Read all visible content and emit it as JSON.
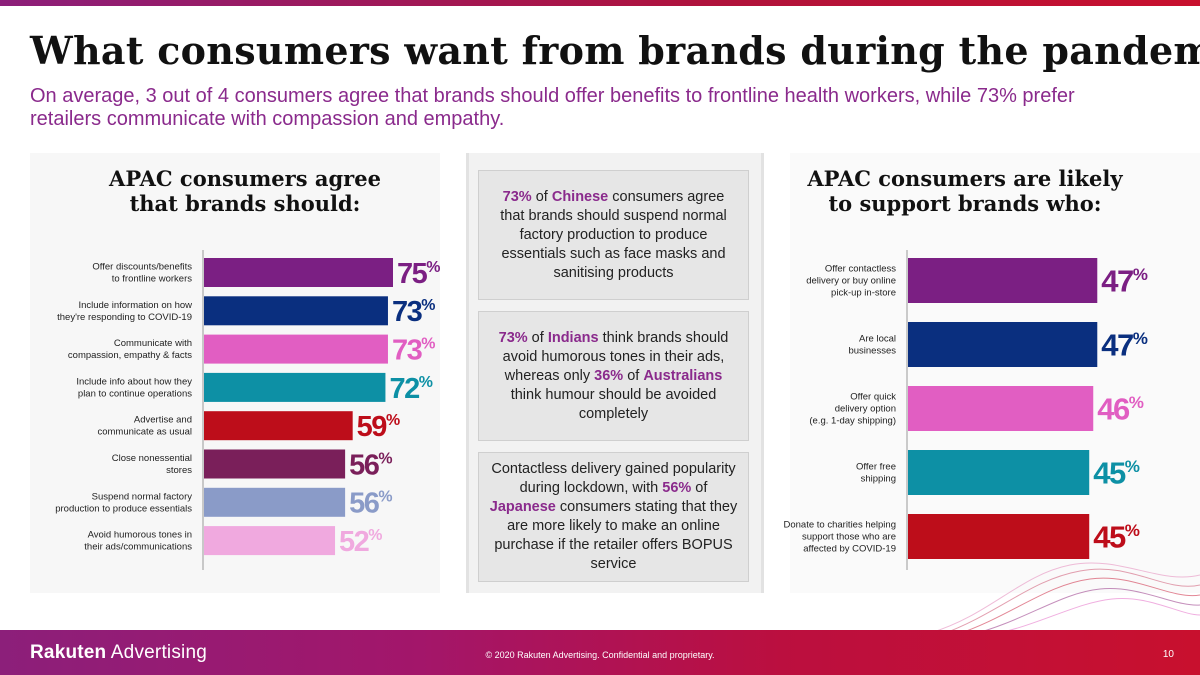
{
  "title": "What consumers want from brands during the pandemic",
  "subtitle": "On average, 3 out of 4 consumers agree that brands should offer benefits to frontline health workers, while 73% prefer retailers communicate with compassion and empathy.",
  "colors": {
    "purple": "#7b1f83",
    "navy": "#0a2f7f",
    "pink": "#e15ec2",
    "teal": "#0d90a5",
    "red": "#bd0d1a",
    "plum": "#7a1f5a",
    "periwinkle": "#8a9bc8",
    "lightpink": "#f0a9df"
  },
  "chart_data": [
    {
      "type": "bar",
      "orientation": "horizontal",
      "title": "APAC consumers agree that brands should:",
      "title_lines": [
        "APAC consumers agree",
        "that brands should:"
      ],
      "categories": [
        [
          "Offer discounts/benefits",
          "to frontline workers"
        ],
        [
          "Include information on how",
          "they're responding to COVID-19"
        ],
        [
          "Communicate with",
          "compassion, empathy & facts"
        ],
        [
          "Include info about how they",
          "plan to continue operations"
        ],
        [
          "Advertise and",
          "communicate as usual"
        ],
        [
          "Close nonessential",
          "stores"
        ],
        [
          "Suspend normal factory",
          "production to produce essentials"
        ],
        [
          "Avoid humorous tones in",
          "their ads/communications"
        ]
      ],
      "values": [
        75,
        73,
        73,
        72,
        59,
        56,
        56,
        52
      ],
      "value_colors": [
        "#7b1f83",
        "#0a2f7f",
        "#e15ec2",
        "#0d90a5",
        "#bd0d1a",
        "#7a1f5a",
        "#8a9bc8",
        "#f0a9df"
      ],
      "unit": "%",
      "xlim": [
        0,
        100
      ]
    },
    {
      "type": "bar",
      "orientation": "horizontal",
      "title": "APAC consumers are likely to support brands who:",
      "title_lines": [
        "APAC consumers are likely",
        "to support brands who:"
      ],
      "categories": [
        [
          "Offer contactless",
          "delivery or buy online",
          "pick-up in-store"
        ],
        [
          "Are local",
          "businesses"
        ],
        [
          "Offer quick",
          "delivery option",
          "(e.g. 1-day shipping)"
        ],
        [
          "Offer free",
          "shipping"
        ],
        [
          "Donate to charities helping",
          "support those who are",
          "affected by COVID-19"
        ]
      ],
      "values": [
        47,
        47,
        46,
        45,
        45
      ],
      "value_colors": [
        "#7b1f83",
        "#0a2f7f",
        "#e15ec2",
        "#0d90a5",
        "#bd0d1a"
      ],
      "unit": "%",
      "xlim": [
        0,
        55
      ]
    }
  ],
  "callouts": [
    {
      "parts": [
        {
          "text": "73%",
          "hl": true
        },
        {
          "text": " of ",
          "hl": false
        },
        {
          "text": "Chinese",
          "hl": true
        },
        {
          "text": " consumers agree that brands should suspend normal factory production to produce essentials such as face masks and sanitising products",
          "hl": false
        }
      ]
    },
    {
      "parts": [
        {
          "text": "73%",
          "hl": true
        },
        {
          "text": " of ",
          "hl": false
        },
        {
          "text": "Indians",
          "hl": true
        },
        {
          "text": " think brands should avoid humorous tones in their ads, whereas only ",
          "hl": false
        },
        {
          "text": "36%",
          "hl": true
        },
        {
          "text": " of ",
          "hl": false
        },
        {
          "text": "Australians",
          "hl": true
        },
        {
          "text": " think humour should be avoided completely",
          "hl": false
        }
      ]
    },
    {
      "parts": [
        {
          "text": "Contactless delivery gained popularity during lockdown, with ",
          "hl": false
        },
        {
          "text": "56%",
          "hl": true
        },
        {
          "text": " of ",
          "hl": false
        },
        {
          "text": "Japanese",
          "hl": true
        },
        {
          "text": " consumers stating that they are more likely to make an online purchase if the retailer offers BOPUS service",
          "hl": false
        }
      ]
    }
  ],
  "footer": {
    "logo_bold": "Rakuten",
    "logo_rest": " Advertising",
    "copyright": "© 2020 Rakuten Advertising. Confidential and proprietary.",
    "page_number": "10"
  }
}
